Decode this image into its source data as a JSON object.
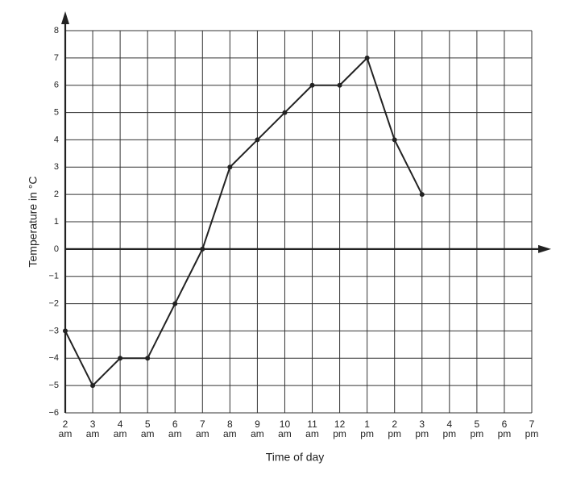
{
  "chart_data": {
    "type": "line",
    "x_label": "Time of day",
    "y_label": "Temperature in °C",
    "categories": [
      "2\nam",
      "3\nam",
      "4\nam",
      "5\nam",
      "6\nam",
      "7\nam",
      "8\nam",
      "9\nam",
      "10\nam",
      "11\nam",
      "12\npm",
      "1\npm",
      "2\npm",
      "3\npm",
      "4\npm",
      "5\npm",
      "6\npm",
      "7\npm"
    ],
    "values": [
      -3,
      -5,
      -4,
      -4,
      -2,
      0,
      3,
      4,
      5,
      6,
      6,
      7,
      4,
      2,
      null,
      null,
      null,
      null
    ],
    "color": "#222222",
    "ylim": [
      -6,
      8
    ],
    "yticks": [
      {
        "value": -6,
        "label": "−6"
      },
      {
        "value": -5,
        "label": "−5"
      },
      {
        "value": -4,
        "label": "−4"
      },
      {
        "value": -3,
        "label": "−3"
      },
      {
        "value": -2,
        "label": "−2"
      },
      {
        "value": -1,
        "label": "−1"
      },
      0,
      1,
      2,
      3,
      4,
      5,
      6,
      7,
      8
    ],
    "grid": true
  }
}
